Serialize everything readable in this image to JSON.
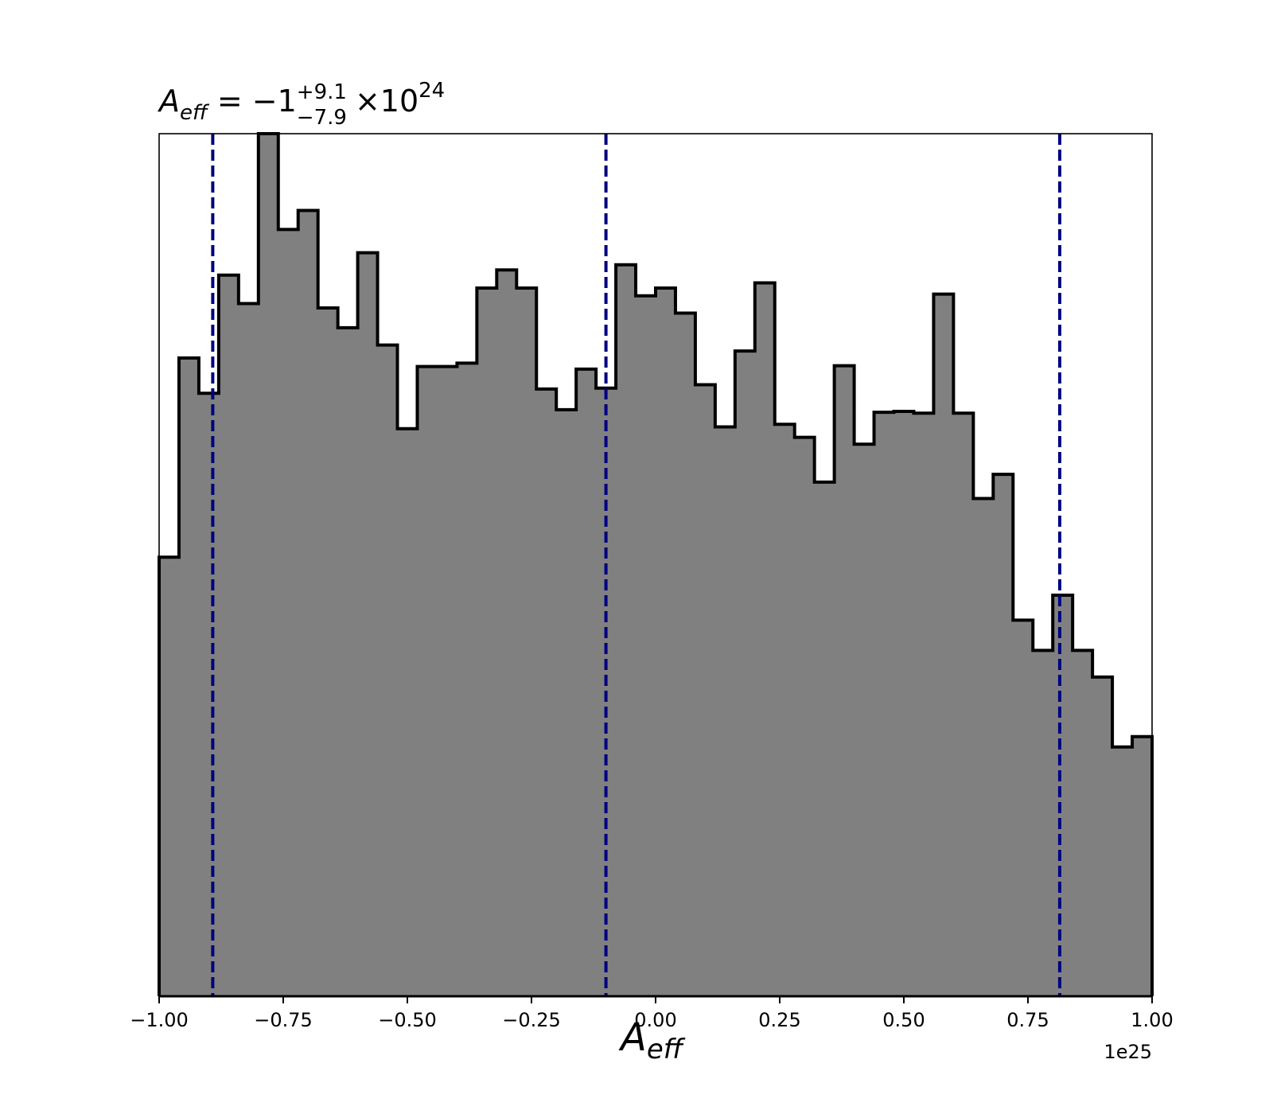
{
  "chart_data": {
    "type": "histogram",
    "title": {
      "symbol": "A",
      "symbol_sub": "eff",
      "equals": " = ",
      "central": "−1",
      "upper": "+9.1",
      "lower": "−7.9",
      "times": "×",
      "base": "10",
      "exponent": "24"
    },
    "xlabel": {
      "symbol": "A",
      "symbol_sub": "eff"
    },
    "x_offset_label": "1e25",
    "xlim": [
      -1.0,
      1.0
    ],
    "ylim": [
      0,
      1.0
    ],
    "xticks": [
      -1.0,
      -0.75,
      -0.5,
      -0.25,
      0.0,
      0.25,
      0.5,
      0.75,
      1.0
    ],
    "xtick_labels": [
      "−1.00",
      "−0.75",
      "−0.50",
      "−0.25",
      "0.00",
      "0.25",
      "0.50",
      "0.75",
      "1.00"
    ],
    "bin_edges_start": -1.0,
    "bin_width": 0.04,
    "counts": [
      0.509,
      0.74,
      0.699,
      0.836,
      0.803,
      1.0,
      0.889,
      0.911,
      0.798,
      0.775,
      0.862,
      0.755,
      0.658,
      0.73,
      0.73,
      0.734,
      0.821,
      0.842,
      0.821,
      0.704,
      0.68,
      0.727,
      0.705,
      0.848,
      0.812,
      0.821,
      0.792,
      0.709,
      0.66,
      0.748,
      0.827,
      0.663,
      0.648,
      0.596,
      0.731,
      0.64,
      0.677,
      0.678,
      0.676,
      0.814,
      0.676,
      0.577,
      0.605,
      0.436,
      0.401,
      0.465,
      0.401,
      0.37,
      0.289,
      0.301
    ],
    "vlines": [
      -0.892,
      -0.1,
      0.814
    ],
    "fill_color": "#808080",
    "edge_color": "#000000",
    "vline_color": "#000080"
  }
}
